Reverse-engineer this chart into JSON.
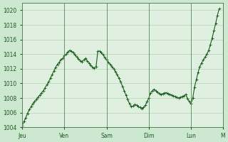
{
  "background_color": "#cce8d0",
  "plot_bg_color": "#dff0e0",
  "line_color": "#1a5c1a",
  "marker": "+",
  "marker_size": 3,
  "linewidth": 0.8,
  "ylim": [
    1004,
    1021
  ],
  "yticks": [
    1004,
    1006,
    1008,
    1010,
    1012,
    1014,
    1016,
    1018,
    1020
  ],
  "tick_color": "#1a5c1a",
  "grid_color": "#aacca0",
  "day_labels": [
    "Jeu",
    "Ven",
    "Sam",
    "Dim",
    "Lun",
    "M"
  ],
  "day_positions": [
    0,
    24,
    48,
    72,
    96,
    114
  ],
  "y_data": [
    1004.2,
    1004.8,
    1005.3,
    1005.9,
    1006.4,
    1006.8,
    1007.2,
    1007.5,
    1007.8,
    1008.1,
    1008.4,
    1008.7,
    1009.0,
    1009.4,
    1009.8,
    1010.2,
    1010.7,
    1011.2,
    1011.7,
    1012.2,
    1012.6,
    1012.9,
    1013.2,
    1013.4,
    1013.8,
    1014.0,
    1014.3,
    1014.5,
    1014.4,
    1014.2,
    1013.9,
    1013.6,
    1013.3,
    1013.1,
    1013.0,
    1013.2,
    1013.4,
    1013.1,
    1012.8,
    1012.5,
    1012.2,
    1012.1,
    1012.3,
    1014.4,
    1014.4,
    1014.2,
    1013.9,
    1013.5,
    1013.2,
    1012.9,
    1012.6,
    1012.3,
    1012.0,
    1011.6,
    1011.2,
    1010.7,
    1010.2,
    1009.6,
    1009.0,
    1008.4,
    1007.8,
    1007.2,
    1006.8,
    1006.9,
    1007.1,
    1007.0,
    1006.8,
    1006.7,
    1006.5,
    1006.7,
    1007.0,
    1007.5,
    1008.0,
    1008.7,
    1009.0,
    1009.2,
    1009.0,
    1008.8,
    1008.6,
    1008.5,
    1008.6,
    1008.7,
    1008.7,
    1008.6,
    1008.5,
    1008.4,
    1008.3,
    1008.2,
    1008.1,
    1008.0,
    1008.1,
    1008.2,
    1008.3,
    1008.5,
    1007.9,
    1007.5,
    1007.2,
    1008.0,
    1009.5,
    1010.5,
    1011.5,
    1012.3,
    1012.8,
    1013.2,
    1013.6,
    1014.0,
    1014.5,
    1015.3,
    1016.2,
    1017.2,
    1018.2,
    1019.3,
    1020.2
  ]
}
